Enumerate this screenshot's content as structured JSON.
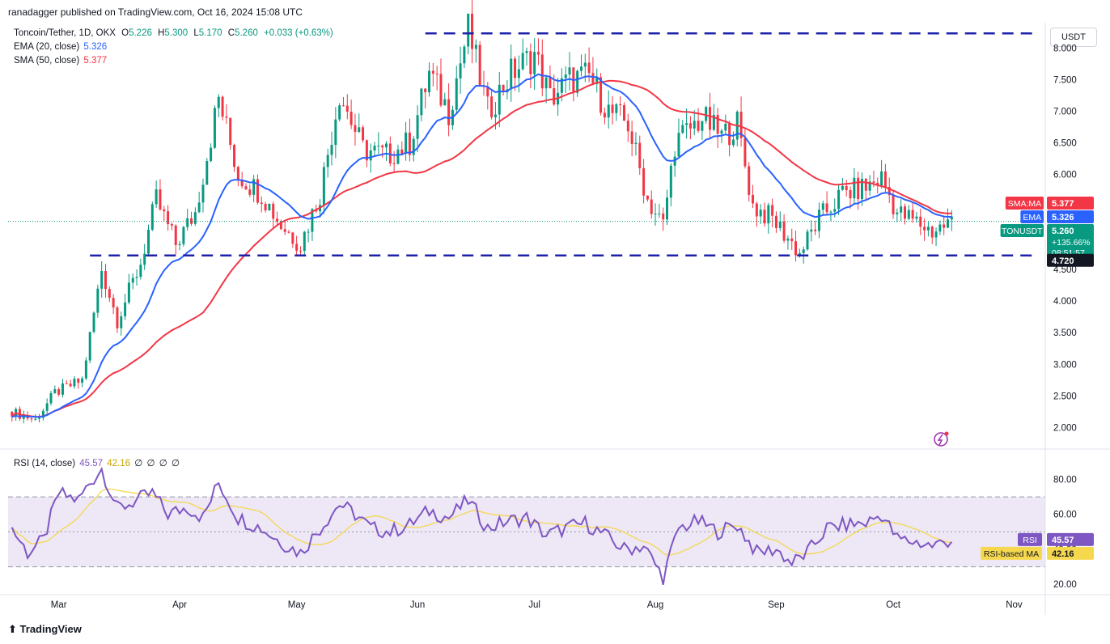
{
  "header": {
    "published": "ranadagger published on TradingView.com, Oct 16, 2024 15:08 UTC",
    "symbol": "Toncoin/Tether, 1D, OKX",
    "o_label": "O",
    "o": "5.226",
    "h_label": "H",
    "h": "5.300",
    "l_label": "L",
    "l": "5.170",
    "c_label": "C",
    "c": "5.260",
    "change": "+0.033 (+0.63%)",
    "ema_label": "EMA (20, close)",
    "ema_value": "5.326",
    "sma_label": "SMA (50, close)",
    "sma_value": "5.377",
    "currency_button": "USDT"
  },
  "footer": {
    "logo": "TradingView"
  },
  "colors": {
    "up": "#089981",
    "down": "#f23645",
    "ema": "#2962ff",
    "sma": "#f23645",
    "rsi": "#7e57c2",
    "rsi_ma": "#f5d84e",
    "rsi_band": "#ede7f6",
    "level": "#1e22aa"
  },
  "chart_data": [
    {
      "type": "candlestick",
      "title": "Toncoin/Tether, 1D, OKX",
      "x_ticks": [
        "Mar",
        "Apr",
        "May",
        "Jun",
        "Jul",
        "Aug",
        "Sep",
        "Oct",
        "Nov"
      ],
      "y_ticks": [
        "2.000",
        "2.500",
        "3.000",
        "3.500",
        "4.000",
        "4.500",
        "5.000",
        "5.500",
        "6.000",
        "6.500",
        "7.000",
        "7.500",
        "8.000"
      ],
      "ylim": [
        1.7,
        8.4
      ],
      "scale": "linear",
      "horizontal_levels": [
        8.23,
        4.72
      ],
      "price_tags": [
        {
          "label": "SMA:MA",
          "value": "5.377",
          "color": "#f23645"
        },
        {
          "label": "EMA",
          "value": "5.326",
          "color": "#2962ff"
        },
        {
          "label": "TONUSDT",
          "value": "5.260",
          "extra1": "+135.66%",
          "extra2": "08:51:57",
          "color": "#089981"
        },
        {
          "label": "",
          "value": "4.720",
          "color": "#131722"
        }
      ],
      "ohlc_anchors": [
        [
          "2024-02-18",
          2.25
        ],
        [
          "2024-02-24",
          2.12
        ],
        [
          "2024-02-29",
          2.55
        ],
        [
          "2024-03-07",
          2.75
        ],
        [
          "2024-03-12",
          4.5
        ],
        [
          "2024-03-16",
          3.7
        ],
        [
          "2024-03-22",
          4.6
        ],
        [
          "2024-03-26",
          5.6
        ],
        [
          "2024-03-31",
          4.9
        ],
        [
          "2024-04-05",
          5.4
        ],
        [
          "2024-04-11",
          7.2
        ],
        [
          "2024-04-16",
          6.0
        ],
        [
          "2024-04-22",
          5.7
        ],
        [
          "2024-04-27",
          5.2
        ],
        [
          "2024-05-02",
          4.9
        ],
        [
          "2024-05-07",
          5.7
        ],
        [
          "2024-05-12",
          7.3
        ],
        [
          "2024-05-18",
          6.4
        ],
        [
          "2024-05-24",
          6.3
        ],
        [
          "2024-05-30",
          6.5
        ],
        [
          "2024-06-04",
          7.6
        ],
        [
          "2024-06-09",
          7.0
        ],
        [
          "2024-06-14",
          8.3
        ],
        [
          "2024-06-19",
          7.0
        ],
        [
          "2024-06-25",
          7.6
        ],
        [
          "2024-07-01",
          7.9
        ],
        [
          "2024-07-05",
          7.2
        ],
        [
          "2024-07-10",
          7.5
        ],
        [
          "2024-07-15",
          7.55
        ],
        [
          "2024-07-20",
          7.0
        ],
        [
          "2024-07-25",
          6.8
        ],
        [
          "2024-07-30",
          5.6
        ],
        [
          "2024-08-03",
          5.2
        ],
        [
          "2024-08-06",
          6.5
        ],
        [
          "2024-08-13",
          6.9
        ],
        [
          "2024-08-18",
          6.6
        ],
        [
          "2024-08-22",
          6.8
        ],
        [
          "2024-08-26",
          5.5
        ],
        [
          "2024-08-31",
          5.3
        ],
        [
          "2024-09-04",
          5.0
        ],
        [
          "2024-09-07",
          4.75
        ],
        [
          "2024-09-12",
          5.3
        ],
        [
          "2024-09-18",
          5.7
        ],
        [
          "2024-09-24",
          5.8
        ],
        [
          "2024-09-28",
          5.95
        ],
        [
          "2024-10-02",
          5.4
        ],
        [
          "2024-10-07",
          5.25
        ],
        [
          "2024-10-11",
          5.1
        ],
        [
          "2024-10-16",
          5.26
        ]
      ]
    },
    {
      "type": "line",
      "title": "RSI (14, close)",
      "series": [
        {
          "name": "RSI",
          "value_label": "45.57"
        },
        {
          "name": "RSI-based MA",
          "value_label": "42.16"
        }
      ],
      "extra_values": [
        "∅",
        "∅",
        "∅",
        "∅"
      ],
      "y_ticks": [
        "20.00",
        "40.00",
        "60.00",
        "80.00"
      ],
      "ylim": [
        15,
        95
      ],
      "band": [
        30,
        70
      ],
      "midline": 50,
      "rsi_anchors": [
        [
          "2024-02-18",
          52
        ],
        [
          "2024-02-22",
          38
        ],
        [
          "2024-02-26",
          45
        ],
        [
          "2024-03-01",
          72
        ],
        [
          "2024-03-06",
          68
        ],
        [
          "2024-03-09",
          78
        ],
        [
          "2024-03-12",
          86
        ],
        [
          "2024-03-16",
          63
        ],
        [
          "2024-03-21",
          68
        ],
        [
          "2024-03-25",
          72
        ],
        [
          "2024-03-29",
          60
        ],
        [
          "2024-04-03",
          64
        ],
        [
          "2024-04-07",
          58
        ],
        [
          "2024-04-11",
          78
        ],
        [
          "2024-04-16",
          58
        ],
        [
          "2024-04-22",
          52
        ],
        [
          "2024-04-27",
          44
        ],
        [
          "2024-05-02",
          38
        ],
        [
          "2024-05-07",
          52
        ],
        [
          "2024-05-12",
          66
        ],
        [
          "2024-05-16",
          60
        ],
        [
          "2024-05-20",
          52
        ],
        [
          "2024-05-25",
          50
        ],
        [
          "2024-05-30",
          54
        ],
        [
          "2024-06-04",
          62
        ],
        [
          "2024-06-09",
          58
        ],
        [
          "2024-06-14",
          68
        ],
        [
          "2024-06-19",
          52
        ],
        [
          "2024-06-24",
          56
        ],
        [
          "2024-06-29",
          58
        ],
        [
          "2024-07-04",
          48
        ],
        [
          "2024-07-09",
          52
        ],
        [
          "2024-07-14",
          55
        ],
        [
          "2024-07-19",
          48
        ],
        [
          "2024-07-24",
          40
        ],
        [
          "2024-07-29",
          42
        ],
        [
          "2024-08-03",
          24
        ],
        [
          "2024-08-07",
          52
        ],
        [
          "2024-08-12",
          56
        ],
        [
          "2024-08-17",
          50
        ],
        [
          "2024-08-22",
          54
        ],
        [
          "2024-08-27",
          38
        ],
        [
          "2024-09-01",
          40
        ],
        [
          "2024-09-05",
          32
        ],
        [
          "2024-09-09",
          38
        ],
        [
          "2024-09-14",
          52
        ],
        [
          "2024-09-19",
          54
        ],
        [
          "2024-09-24",
          55
        ],
        [
          "2024-09-28",
          60
        ],
        [
          "2024-10-02",
          46
        ],
        [
          "2024-10-07",
          44
        ],
        [
          "2024-10-11",
          42
        ],
        [
          "2024-10-16",
          45.57
        ]
      ]
    }
  ]
}
